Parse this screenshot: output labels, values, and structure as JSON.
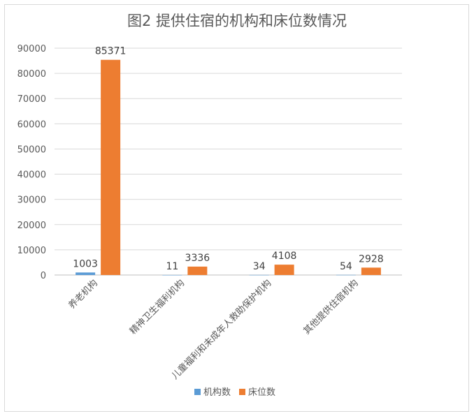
{
  "chart_data": {
    "type": "bar",
    "title": "图2  提供住宿的机构和床位数情况",
    "categories": [
      "养老机构",
      "精神卫生福利机构",
      "儿童福利和未成年人救助保护机构",
      "其他提供住宿机构"
    ],
    "series": [
      {
        "name": "机构数",
        "values": [
          1003,
          11,
          34,
          54
        ],
        "color": "#5b9bd5"
      },
      {
        "name": "床位数",
        "values": [
          85371,
          3336,
          4108,
          2928
        ],
        "color": "#ed7d31"
      }
    ],
    "ylim": [
      0,
      90000
    ],
    "yticks": [
      "0",
      "10000",
      "20000",
      "30000",
      "40000",
      "50000",
      "60000",
      "70000",
      "80000",
      "90000"
    ],
    "grid": true,
    "legend": "bottom"
  }
}
